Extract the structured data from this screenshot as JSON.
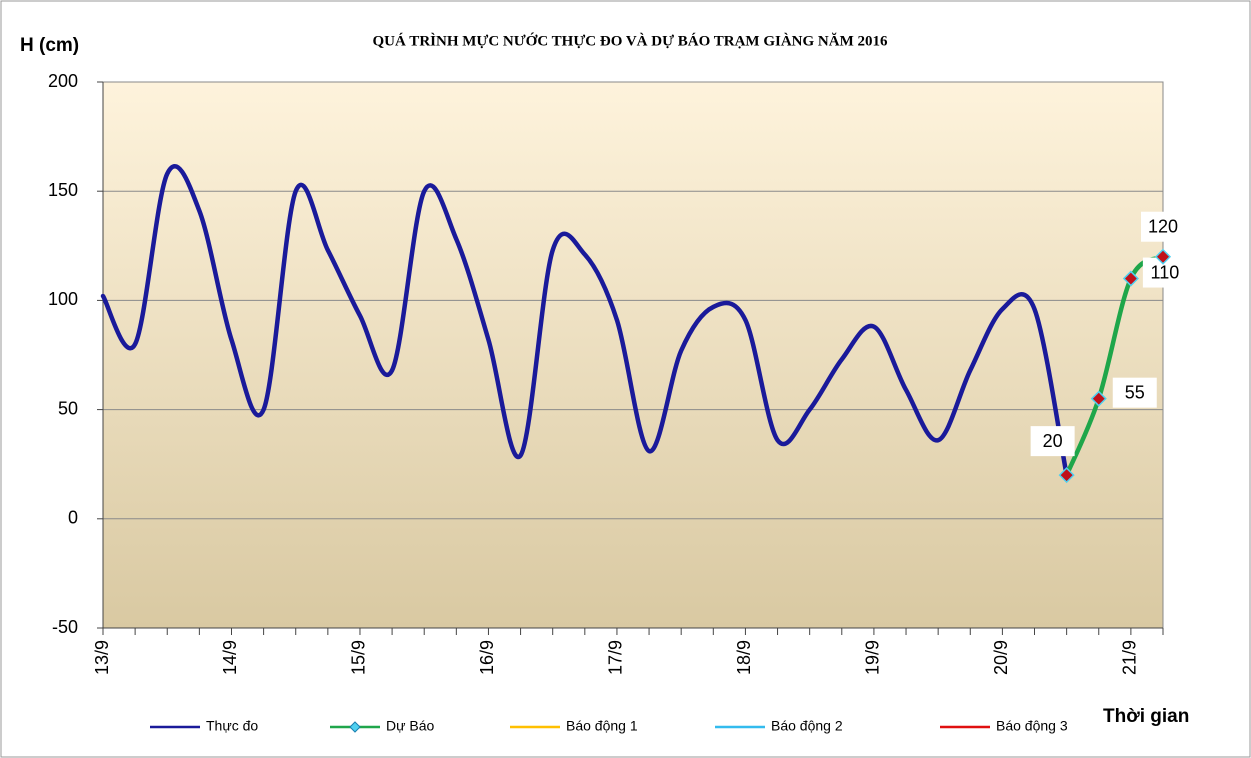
{
  "chart_data": {
    "type": "line",
    "title": "QUÁ TRÌNH MỰC NƯỚC THỰC ĐO VÀ DỰ BÁO TRẠM GIÀNG NĂM 2016",
    "y_label": "H (cm)",
    "x_label": "Thời gian",
    "categories": [
      "13/9",
      null,
      null,
      null,
      "14/9",
      null,
      null,
      null,
      "15/9",
      null,
      null,
      null,
      "16/9",
      null,
      null,
      null,
      "17/9",
      null,
      null,
      null,
      "18/9",
      null,
      null,
      null,
      "19/9",
      null,
      null,
      null,
      "20/9",
      null,
      null,
      null,
      "21/9",
      null
    ],
    "series": [
      {
        "name": "Thực đo",
        "color": "#1a1a9a",
        "values": [
          102,
          80,
          158,
          141,
          82,
          50,
          150,
          123,
          93,
          68,
          150,
          128,
          82,
          29,
          123,
          121,
          91,
          31,
          77,
          97,
          91,
          36,
          50,
          73,
          88,
          59,
          36,
          68,
          96,
          96,
          20,
          null,
          null,
          null
        ]
      },
      {
        "name": "Dự Báo",
        "color": "#1fa64a",
        "marker_color": "#c0101a",
        "values": [
          null,
          null,
          null,
          null,
          null,
          null,
          null,
          null,
          null,
          null,
          null,
          null,
          null,
          null,
          null,
          null,
          null,
          null,
          null,
          null,
          null,
          null,
          null,
          null,
          null,
          null,
          null,
          null,
          null,
          null,
          20,
          55,
          110,
          120
        ]
      },
      {
        "name": "Báo động 1",
        "color": "#ffc000",
        "values": [
          null,
          null,
          null,
          null,
          null,
          null,
          null,
          null,
          null,
          null,
          null,
          null,
          null,
          null,
          null,
          null,
          null,
          null,
          null,
          null,
          null,
          null,
          null,
          null,
          null,
          null,
          null,
          null,
          null,
          null,
          null,
          null,
          null,
          null
        ]
      },
      {
        "name": "Báo động 2",
        "color": "#33bbee",
        "values": [
          null,
          null,
          null,
          null,
          null,
          null,
          null,
          null,
          null,
          null,
          null,
          null,
          null,
          null,
          null,
          null,
          null,
          null,
          null,
          null,
          null,
          null,
          null,
          null,
          null,
          null,
          null,
          null,
          null,
          null,
          null,
          null,
          null,
          null
        ]
      },
      {
        "name": "Báo động 3",
        "color": "#e01010",
        "values": [
          null,
          null,
          null,
          null,
          null,
          null,
          null,
          null,
          null,
          null,
          null,
          null,
          null,
          null,
          null,
          null,
          null,
          null,
          null,
          null,
          null,
          null,
          null,
          null,
          null,
          null,
          null,
          null,
          null,
          null,
          null,
          null,
          null,
          null
        ]
      }
    ],
    "ylim": [
      -50,
      200
    ],
    "yticks": [
      -50,
      0,
      50,
      100,
      150,
      200
    ],
    "grid": true
  }
}
